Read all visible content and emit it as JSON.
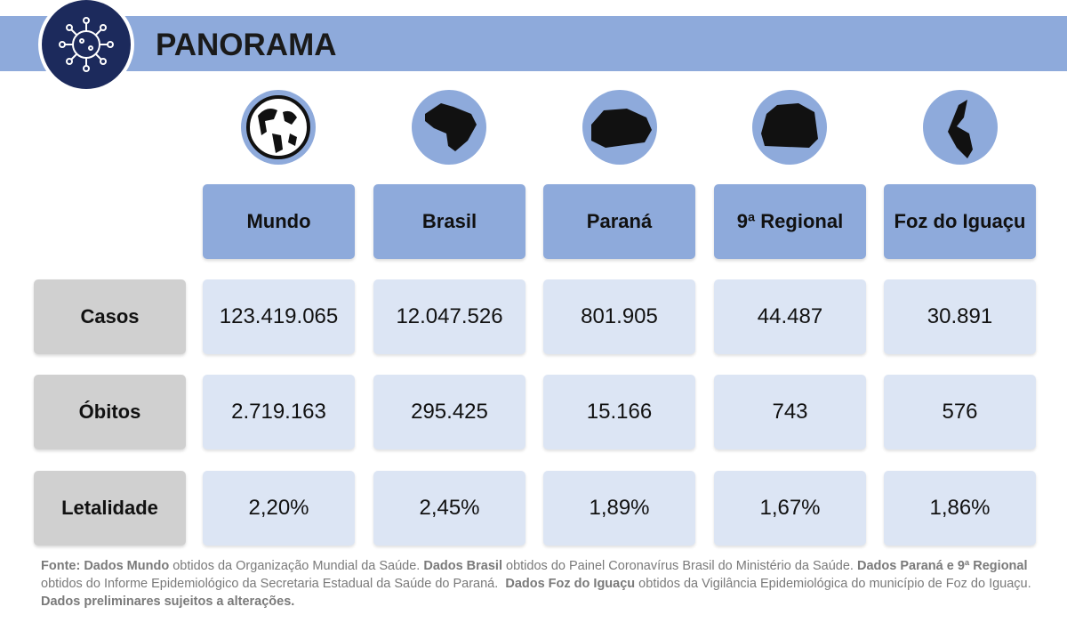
{
  "header": {
    "title": "PANORAMA"
  },
  "table": {
    "columns": [
      "Mundo",
      "Brasil",
      "Paraná",
      "9ª Regional",
      "Foz do Iguaçu"
    ],
    "rows": [
      {
        "label": "Casos",
        "cells": [
          "123.419.065",
          "12.047.526",
          "801.905",
          "44.487",
          "30.891"
        ]
      },
      {
        "label": "Óbitos",
        "cells": [
          "2.719.163",
          "295.425",
          "15.166",
          "743",
          "576"
        ]
      },
      {
        "label": "Letalidade",
        "cells": [
          "2,20%",
          "2,45%",
          "1,89%",
          "1,67%",
          "1,86%"
        ]
      }
    ]
  },
  "footer": {
    "segments": [
      {
        "text": "Fonte: Dados Mundo",
        "bold": true
      },
      {
        "text": " obtidos da Organização Mundial da Saúde. ",
        "bold": false
      },
      {
        "text": "Dados Brasil",
        "bold": true
      },
      {
        "text": " obtidos do Painel Coronavírus Brasil do Ministério da Saúde. ",
        "bold": false
      },
      {
        "text": "Dados Paraná e 9ª Regional",
        "bold": true
      },
      {
        "text": " obtidos do Informe Epidemiológico da Secretaria Estadual da Saúde do Paraná.  ",
        "bold": false
      },
      {
        "text": "Dados Foz do Iguaçu",
        "bold": true
      },
      {
        "text": " obtidos da Vigilância Epidemiológica do município de Foz do Iguaçu.  ",
        "bold": false
      },
      {
        "text": "Dados preliminares sujeitos a alterações.",
        "bold": true
      }
    ]
  }
}
